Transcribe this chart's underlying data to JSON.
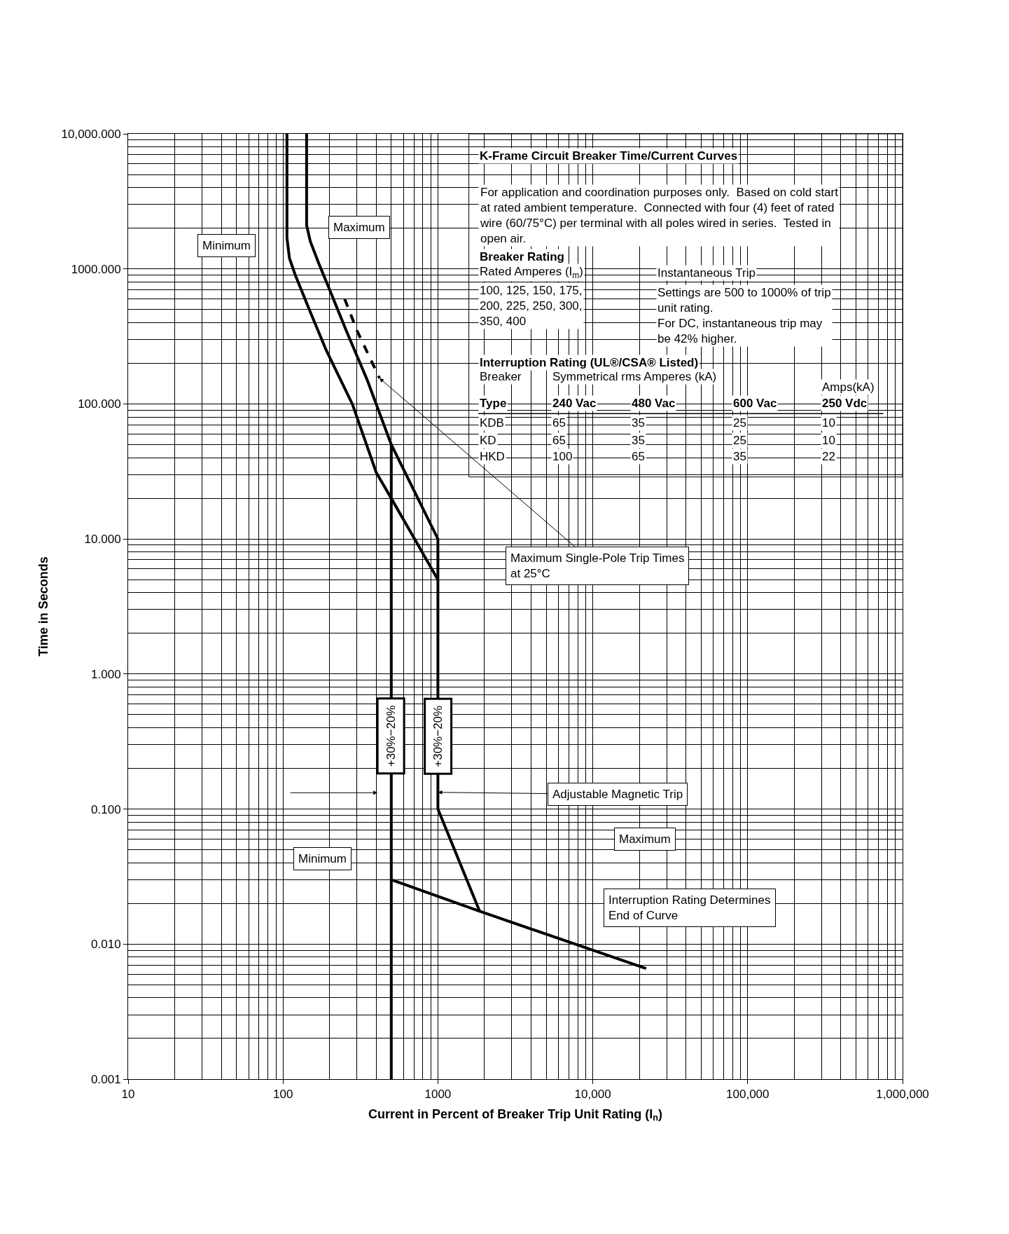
{
  "chart_data": {
    "type": "line",
    "xlabel": "Current in Percent of Breaker Trip Unit Rating (I$_{n}$)",
    "ylabel": "Time in Seconds",
    "log": "xy",
    "grid": true,
    "marker": "none",
    "xlim": [
      10,
      1000000
    ],
    "ylim": [
      0.001,
      10000
    ],
    "xticks": [
      10,
      100,
      1000,
      {
        "value": 10000,
        "label": "10,000"
      },
      {
        "value": 100000,
        "label": "100,000"
      },
      {
        "value": 1000000,
        "label": "1,000,000"
      }
    ],
    "yticks": [
      {
        "value": 0.001,
        "label": "0.001"
      },
      {
        "value": 0.01,
        "label": "0.010"
      },
      {
        "value": 0.1,
        "label": "0.100"
      },
      {
        "value": 1,
        "label": "1.000"
      },
      {
        "value": 10,
        "label": "10.000"
      },
      {
        "value": 100,
        "label": "100.000"
      },
      {
        "value": 1000,
        "label": "1000.000"
      },
      {
        "value": 10000,
        "label": "10,000.000"
      }
    ],
    "series": [
      {
        "color": "#000000",
        "line_style": "solid",
        "x": [
          106,
          106,
          110,
          120,
          150,
          190,
          280,
          340,
          400,
          500,
          1000
        ],
        "values": [
          10000,
          1700,
          1200,
          900,
          480,
          250,
          100,
          53,
          31,
          20,
          5
        ]
      },
      {
        "color": "#000000",
        "line_style": "solid",
        "x": [
          142,
          142,
          150,
          170,
          200,
          257,
          350,
          500,
          1000,
          1000,
          1860
        ],
        "values": [
          10000,
          2100,
          1600,
          1100,
          700,
          345,
          150,
          50,
          10,
          0.1,
          0.0175
        ]
      },
      {
        "color": "#000000",
        "line_style": "solid",
        "x": [
          500,
          500
        ],
        "values": [
          50,
          0.001
        ]
      },
      {
        "color": "#000000",
        "line_style": "solid",
        "x": [
          500,
          1860,
          22100
        ],
        "values": [
          0.03,
          0.0175,
          0.0066
        ]
      },
      {
        "color": "#000000",
        "line_style": "dashed",
        "x": [
          250,
          300,
          420
        ],
        "values": [
          600,
          350,
          155
        ]
      }
    ],
    "annotations": [
      "K-Frame Circuit Breaker Time/Current Curves",
      "For application and coordination purposes only.  Based on cold start\nat rated ambient temperature.  Connected with four (4) feet of rated\nwire (60/75°C) per terminal with all poles wired in series.  Tested in\nopen air.",
      "Breaker Rating",
      "Rated Amperes (I$_{m}$)",
      "100, 125, 150, 175,\n200, 225, 250, 300,\n350, 400",
      "Instantaneous Trip",
      "Settings are 500 to 1000% of trip\nunit rating.\nFor DC, instantaneous trip may\nbe 42% higher.",
      "Interruption Rating (UL®/CSA® Listed)",
      "Breaker",
      "Symmetrical rms Amperes (kA)",
      "Amps(kA)",
      "Type",
      "240 Vac",
      "480 Vac",
      "600 Vac",
      "250 Vdc",
      "KDB",
      "65",
      "35",
      "25",
      "10",
      "KD",
      "65",
      "35",
      "25",
      "10",
      "HKD",
      "100",
      "65",
      "35",
      "22",
      "Minimum",
      "Maximum",
      {
        "text": "Maximum Single-Pole Trip Times\nat 25°C",
        "x": 420,
        "y": 155
      },
      "+30%−20%",
      "+30%−20%",
      {
        "text": "Adjustable Magnetic Trip",
        "x": 1000,
        "y": 0.133
      },
      "Maximum",
      "Minimum",
      "Interruption Rating Determines\nEnd of Curve"
    ]
  }
}
